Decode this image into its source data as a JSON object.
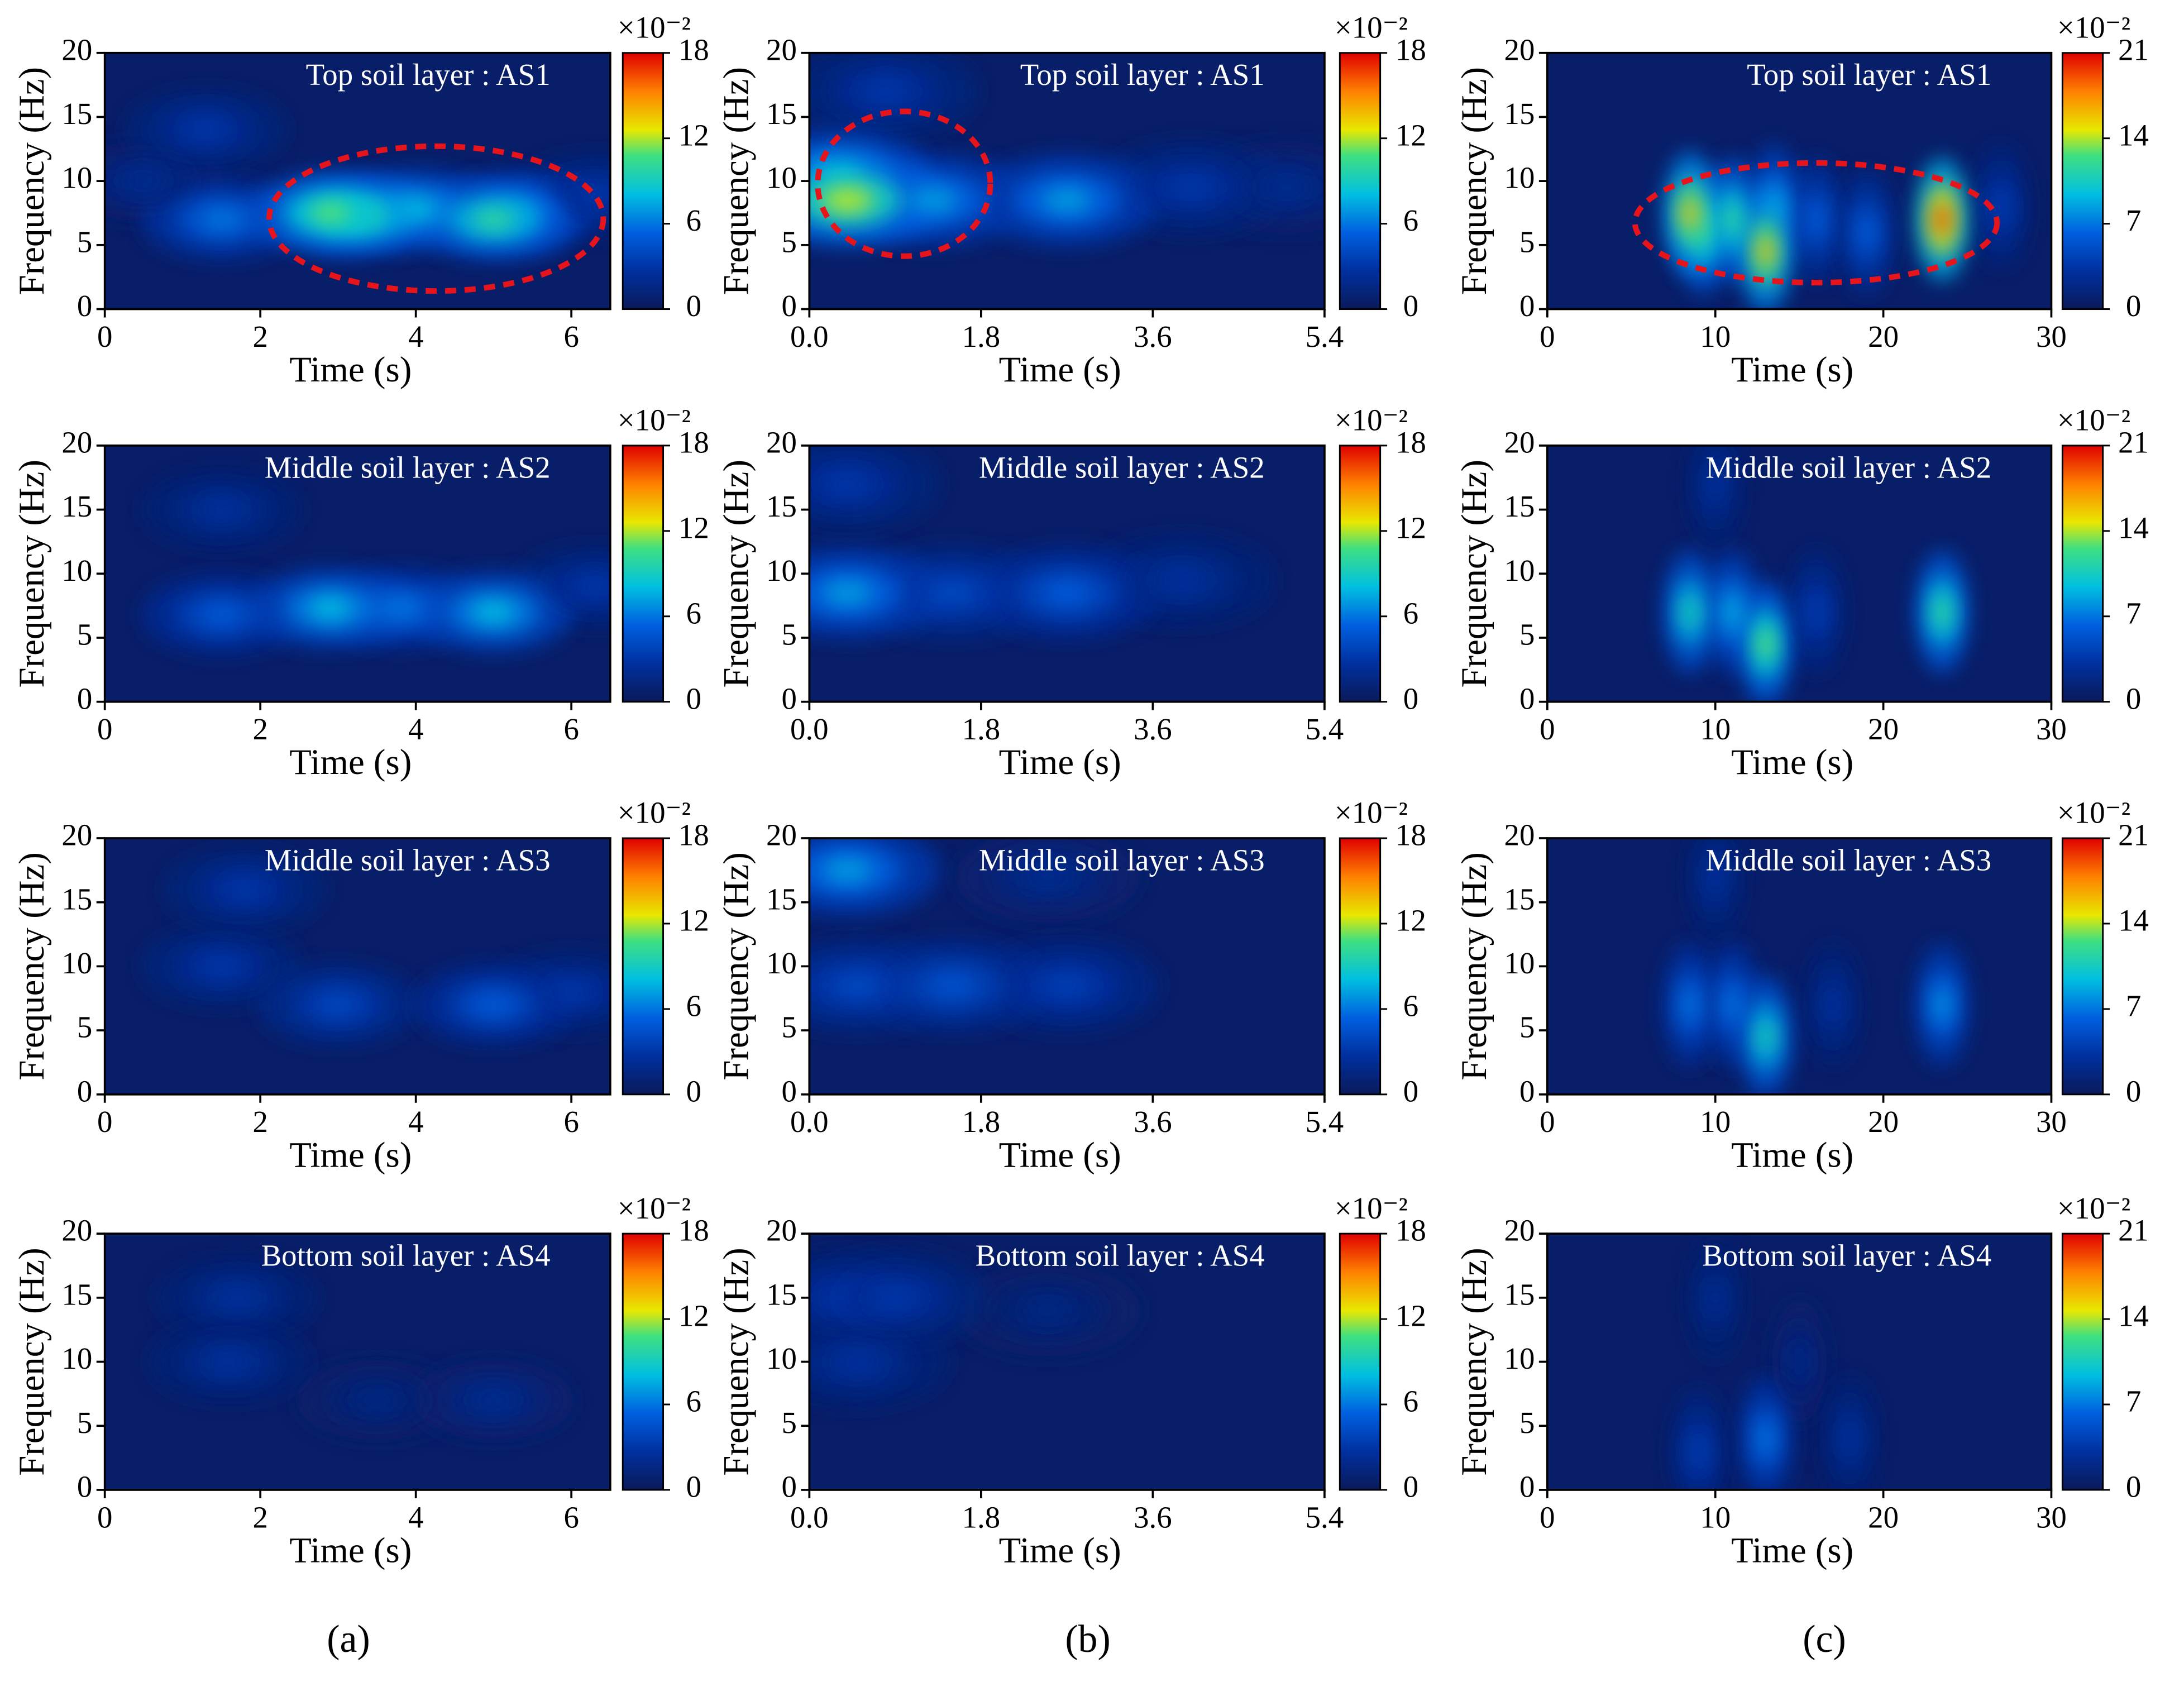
{
  "chart_data": [
    {
      "type": "heatmap",
      "title": "Top soil layer : AS1",
      "xlabel": "Time (s)",
      "ylabel": "Frequency (Hz)",
      "xlim": [
        0,
        6.5
      ],
      "xticks": [
        0,
        2,
        4,
        6
      ],
      "ylim": [
        0,
        20
      ],
      "yticks": [
        0,
        5,
        10,
        15,
        20
      ],
      "clim": [
        0,
        18
      ],
      "cticks": [
        0,
        6,
        12,
        18
      ],
      "cmultiplier": "×10⁻²",
      "hotspots": {
        "x": [
          0.5,
          1.3,
          6.3,
          1.5,
          4,
          5.3,
          3.3,
          2.9,
          5
        ],
        "y": [
          10,
          14,
          9,
          7,
          7.8,
          7.5,
          7.3,
          7.5,
          7
        ],
        "values": [
          2,
          3,
          3,
          6,
          8,
          7,
          10,
          11,
          10
        ]
      }
    },
    {
      "type": "heatmap",
      "title": "Top soil layer : AS1",
      "xlabel": "Time (s)",
      "ylabel": "Frequency (Hz)",
      "xlim": [
        0,
        5.4
      ],
      "xticks": [
        {
          "value": 0,
          "label": "0.0"
        },
        1.8,
        3.6,
        5.4
      ],
      "ylim": [
        0,
        20
      ],
      "yticks": [
        0,
        5,
        10,
        15,
        20
      ],
      "clim": [
        0,
        18
      ],
      "cticks": [
        0,
        6,
        12,
        18
      ],
      "cmultiplier": "×10⁻²",
      "hotspots": {
        "x": [
          5,
          0.8,
          4,
          1.3,
          2.7,
          0.3,
          0.4
        ],
        "y": [
          9.5,
          17,
          9.5,
          8.5,
          8.5,
          10.5,
          8.5
        ],
        "values": [
          2,
          3,
          3,
          7,
          7,
          8,
          12
        ]
      }
    },
    {
      "type": "heatmap",
      "title": "Top soil layer : AS1",
      "xlabel": "Time (s)",
      "ylabel": "Frequency (Hz)",
      "xlim": [
        0,
        30
      ],
      "xticks": [
        0,
        10,
        20,
        30
      ],
      "ylim": [
        0,
        20
      ],
      "yticks": [
        0,
        5,
        10,
        15,
        20
      ],
      "clim": [
        0,
        21
      ],
      "cticks": [
        0,
        7,
        14,
        21
      ],
      "cmultiplier": "×10⁻²",
      "hotspots": {
        "x": [
          27,
          16,
          19,
          13.5,
          9.3,
          11,
          8.5,
          13,
          23.5
        ],
        "y": [
          8,
          7,
          6,
          8,
          6,
          7,
          7.5,
          4.5,
          7
        ],
        "values": [
          4,
          6,
          6,
          9,
          12,
          12,
          16,
          16,
          19
        ]
      }
    },
    {
      "type": "heatmap",
      "title": "Middle soil layer : AS2",
      "xlabel": "Time (s)",
      "ylabel": "Frequency (Hz)",
      "xlim": [
        0,
        6.5
      ],
      "xticks": [
        0,
        2,
        4,
        6
      ],
      "ylim": [
        0,
        20
      ],
      "yticks": [
        0,
        5,
        10,
        15,
        20
      ],
      "clim": [
        0,
        18
      ],
      "cticks": [
        0,
        6,
        12,
        18
      ],
      "cmultiplier": "×10⁻²",
      "hotspots": {
        "x": [
          1.5,
          6.3,
          1.5,
          3.8,
          2.9,
          5
        ],
        "y": [
          15,
          9,
          6.8,
          7.3,
          7.3,
          7
        ],
        "values": [
          2.5,
          3,
          5,
          6,
          8,
          8
        ]
      }
    },
    {
      "type": "heatmap",
      "title": "Middle soil layer : AS2",
      "xlabel": "Time (s)",
      "ylabel": "Frequency (Hz)",
      "xlim": [
        0,
        5.4
      ],
      "xticks": [
        {
          "value": 0,
          "label": "0.0"
        },
        1.8,
        3.6,
        5.4
      ],
      "ylim": [
        0,
        20
      ],
      "yticks": [
        0,
        5,
        10,
        15,
        20
      ],
      "clim": [
        0,
        18
      ],
      "cticks": [
        0,
        6,
        12,
        18
      ],
      "cmultiplier": "×10⁻²",
      "hotspots": {
        "x": [
          3.9,
          0.4,
          1.5,
          2.7,
          0.4
        ],
        "y": [
          9.5,
          17,
          8.5,
          8.5,
          8.5
        ],
        "values": [
          2.5,
          3,
          4,
          5,
          7
        ]
      }
    },
    {
      "type": "heatmap",
      "title": "Middle soil layer : AS2",
      "xlabel": "Time (s)",
      "ylabel": "Frequency (Hz)",
      "xlim": [
        0,
        30
      ],
      "xticks": [
        0,
        10,
        20,
        30
      ],
      "ylim": [
        0,
        20
      ],
      "yticks": [
        0,
        5,
        10,
        15,
        20
      ],
      "clim": [
        0,
        21
      ],
      "cticks": [
        0,
        7,
        14,
        21
      ],
      "cmultiplier": "×10⁻²",
      "hotspots": {
        "x": [
          10,
          16,
          11,
          8.5,
          23.5,
          13
        ],
        "y": [
          17,
          7,
          7,
          7,
          7,
          4.5
        ],
        "values": [
          3,
          4,
          9,
          11,
          12,
          13
        ]
      }
    },
    {
      "type": "heatmap",
      "title": "Middle soil layer : AS3",
      "xlabel": "Time (s)",
      "ylabel": "Frequency (Hz)",
      "xlim": [
        0,
        6.5
      ],
      "xticks": [
        0,
        2,
        4,
        6
      ],
      "ylim": [
        0,
        20
      ],
      "yticks": [
        0,
        5,
        10,
        15,
        20
      ],
      "clim": [
        0,
        18
      ],
      "cticks": [
        0,
        6,
        12,
        18
      ],
      "cmultiplier": "×10⁻²",
      "hotspots": {
        "x": [
          1.5,
          1.8,
          6,
          3,
          5
        ],
        "y": [
          10,
          16,
          8,
          7,
          7
        ],
        "values": [
          3,
          3,
          3,
          4,
          5
        ]
      }
    },
    {
      "type": "heatmap",
      "title": "Middle soil layer : AS3",
      "xlabel": "Time (s)",
      "ylabel": "Frequency (Hz)",
      "xlim": [
        0,
        5.4
      ],
      "xticks": [
        {
          "value": 0,
          "label": "0.0"
        },
        1.8,
        3.6,
        5.4
      ],
      "ylim": [
        0,
        20
      ],
      "yticks": [
        0,
        5,
        10,
        15,
        20
      ],
      "clim": [
        0,
        18
      ],
      "cticks": [
        0,
        6,
        12,
        18
      ],
      "cmultiplier": "×10⁻²",
      "hotspots": {
        "x": [
          2.5,
          2.7,
          0.5,
          1.5,
          0.4
        ],
        "y": [
          17,
          8.5,
          8.5,
          8.5,
          17.5
        ],
        "values": [
          2,
          3.5,
          4,
          4.5,
          7
        ]
      }
    },
    {
      "type": "heatmap",
      "title": "Middle soil layer : AS3",
      "xlabel": "Time (s)",
      "ylabel": "Frequency (Hz)",
      "xlim": [
        0,
        30
      ],
      "xticks": [
        0,
        10,
        20,
        30
      ],
      "ylim": [
        0,
        20
      ],
      "yticks": [
        0,
        5,
        10,
        15,
        20
      ],
      "clim": [
        0,
        21
      ],
      "cticks": [
        0,
        7,
        14,
        21
      ],
      "cmultiplier": "×10⁻²",
      "hotspots": {
        "x": [
          10,
          17,
          8.5,
          11,
          23.5,
          13
        ],
        "y": [
          17,
          7,
          7,
          7,
          7,
          4.5
        ],
        "values": [
          3,
          3,
          7,
          7,
          8,
          11
        ]
      }
    },
    {
      "type": "heatmap",
      "title": "Bottom soil layer : AS4",
      "xlabel": "Time (s)",
      "ylabel": "Frequency (Hz)",
      "xlim": [
        0,
        6.5
      ],
      "xticks": [
        0,
        2,
        4,
        6
      ],
      "ylim": [
        0,
        20
      ],
      "yticks": [
        0,
        5,
        10,
        15,
        20
      ],
      "clim": [
        0,
        18
      ],
      "cticks": [
        0,
        6,
        12,
        18
      ],
      "cmultiplier": "×10⁻²",
      "hotspots": {
        "x": [
          3.5,
          5,
          1.7,
          1.6
        ],
        "y": [
          7,
          7,
          15,
          10
        ],
        "values": [
          1.5,
          2,
          2.5,
          2.5
        ]
      }
    },
    {
      "type": "heatmap",
      "title": "Bottom soil layer : AS4",
      "xlabel": "Time (s)",
      "ylabel": "Frequency (Hz)",
      "xlim": [
        0,
        5.4
      ],
      "xticks": [
        {
          "value": 0,
          "label": "0.0"
        },
        1.8,
        3.6,
        5.4
      ],
      "ylim": [
        0,
        20
      ],
      "yticks": [
        0,
        5,
        10,
        15,
        20
      ],
      "clim": [
        0,
        18
      ],
      "cticks": [
        0,
        6,
        12,
        18
      ],
      "cmultiplier": "×10⁻²",
      "hotspots": {
        "x": [
          2.5,
          0.5,
          0.4,
          0.9
        ],
        "y": [
          14,
          10,
          15,
          15
        ],
        "values": [
          1.5,
          2.5,
          3,
          3
        ]
      }
    },
    {
      "type": "heatmap",
      "title": "Bottom soil layer : AS4",
      "xlabel": "Time (s)",
      "ylabel": "Frequency (Hz)",
      "xlim": [
        0,
        30
      ],
      "xticks": [
        0,
        10,
        20,
        30
      ],
      "ylim": [
        0,
        20
      ],
      "yticks": [
        0,
        5,
        10,
        15,
        20
      ],
      "clim": [
        0,
        21
      ],
      "cticks": [
        0,
        7,
        14,
        21
      ],
      "cmultiplier": "×10⁻²",
      "hotspots": {
        "x": [
          15,
          10,
          18,
          9,
          13
        ],
        "y": [
          10,
          15,
          4,
          3,
          4
        ],
        "values": [
          2,
          2.5,
          3,
          4,
          7
        ]
      }
    }
  ],
  "panel_labels": [
    "(a)",
    "(b)",
    "(c)"
  ]
}
